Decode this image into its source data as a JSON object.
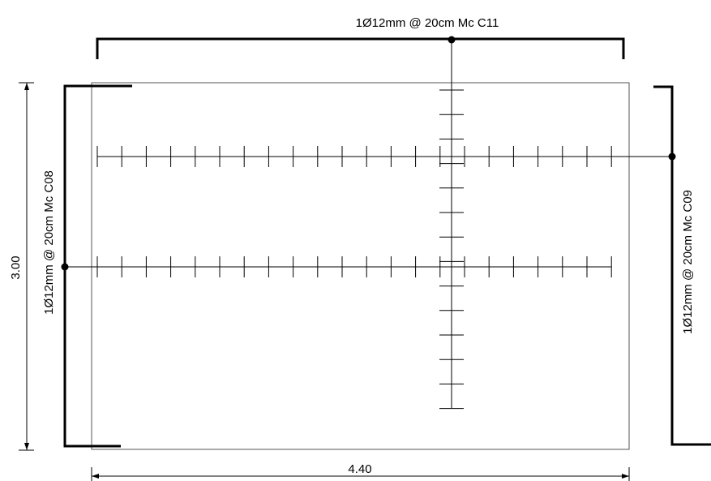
{
  "drawing": {
    "top_bar_label": "1Ø12mm @ 20cm Mc C11",
    "left_bar_label": "1Ø12mm @ 20cm Mc C08",
    "right_bar_label": "1Ø12mm @ 20cm Mc C09",
    "dimension_width": "4.40",
    "dimension_height": "3.00"
  }
}
